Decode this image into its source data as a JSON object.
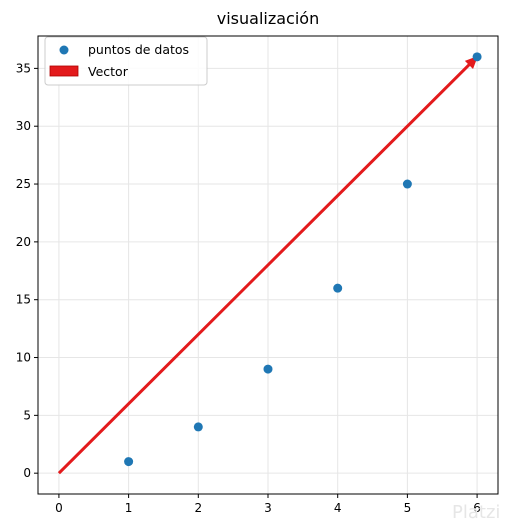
{
  "chart_data": {
    "type": "scatter",
    "title": "visualización",
    "xlim": [
      -0.3,
      6.3
    ],
    "ylim": [
      -1.8,
      37.8
    ],
    "xticks": [
      0,
      1,
      2,
      3,
      4,
      5,
      6
    ],
    "yticks": [
      0,
      5,
      10,
      15,
      20,
      25,
      30,
      35
    ],
    "grid": true,
    "series": [
      {
        "name": "puntos de datos",
        "type": "scatter",
        "color": "#1f77b4",
        "x": [
          1,
          2,
          3,
          4,
          5,
          6
        ],
        "y": [
          1,
          4,
          9,
          16,
          25,
          36
        ]
      },
      {
        "name": "Vector",
        "type": "arrow",
        "color": "#e31a1c",
        "start": [
          0,
          0
        ],
        "end": [
          6,
          36
        ]
      }
    ],
    "legend_position": "top-left"
  },
  "watermark": {
    "text": "Platzi"
  }
}
